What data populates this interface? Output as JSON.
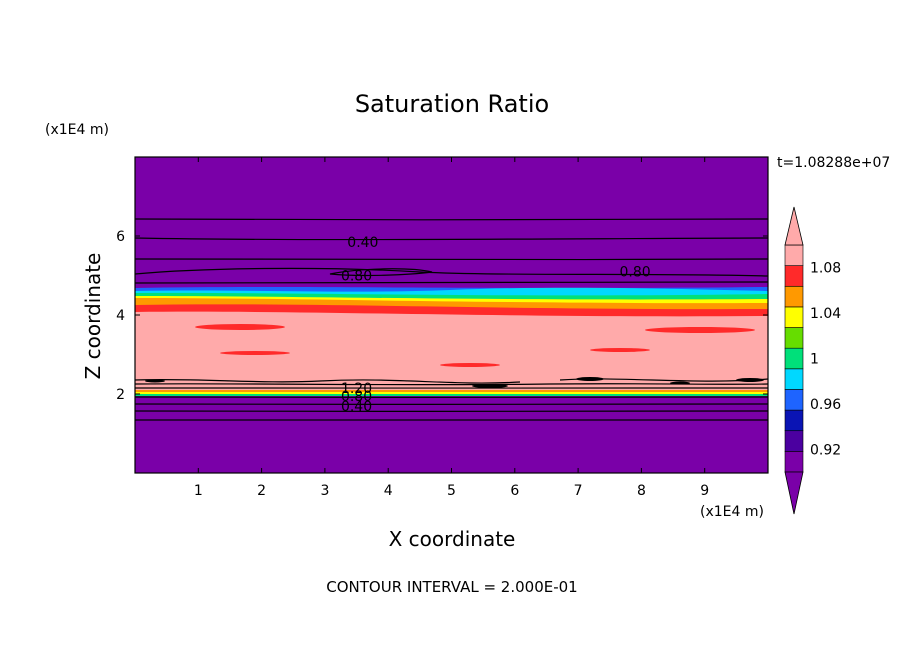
{
  "chart_data": {
    "type": "contour",
    "title": "Saturation Ratio",
    "xlabel": "X coordinate",
    "ylabel": "Z coordinate",
    "x_units": "(x1E4 m)",
    "y_units": "(x1E4 m)",
    "time_label": "t=1.08288e+07",
    "footer": "CONTOUR INTERVAL = 2.000E-01",
    "xlim": [
      0,
      10
    ],
    "ylim": [
      0,
      8
    ],
    "x_ticks": [
      1,
      2,
      3,
      4,
      5,
      6,
      7,
      8,
      9
    ],
    "y_ticks": [
      2,
      4,
      6
    ],
    "contour_labels": [
      {
        "text": "0.40",
        "x": 3.6,
        "z": 5.85
      },
      {
        "text": "0.80",
        "x": 3.5,
        "z": 5.0
      },
      {
        "text": "0.80",
        "x": 7.9,
        "z": 5.1
      },
      {
        "text": "1.20",
        "x": 3.5,
        "z": 2.15
      },
      {
        "text": "0.80",
        "x": 3.5,
        "z": 1.95
      },
      {
        "text": "0.40",
        "x": 3.5,
        "z": 1.7
      }
    ],
    "colorbar": {
      "tick_labels": [
        "1.08",
        "1.04",
        "1",
        "0.96",
        "0.92"
      ],
      "levels": [
        0.9,
        0.92,
        0.94,
        0.96,
        0.98,
        1.0,
        1.02,
        1.04,
        1.06,
        1.08,
        1.1
      ],
      "colors": [
        "#7a00a8",
        "#4b00a0",
        "#0a14b4",
        "#1e64ff",
        "#00d8ff",
        "#00e07a",
        "#66dd00",
        "#ffff00",
        "#ff9900",
        "#ff2a2a",
        "#ffaaaa"
      ],
      "under_color": "#7a00a8",
      "over_color": "#ffaaaa"
    }
  }
}
